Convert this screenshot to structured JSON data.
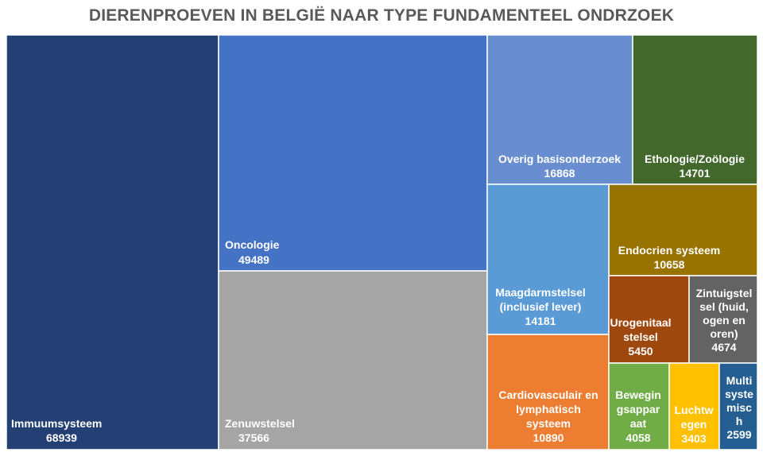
{
  "chart_data": {
    "type": "treemap",
    "title": "DIERENPROEVEN IN BELGIË NAAR TYPE FUNDAMENTEEL ONDRZOEK",
    "items": [
      {
        "label": "Immuumsysteem",
        "value": 68939,
        "color": "#243F74"
      },
      {
        "label": "Oncologie",
        "value": 49489,
        "color": "#4472C4"
      },
      {
        "label": "Zenuwstelsel",
        "value": 37566,
        "color": "#A5A5A5"
      },
      {
        "label": "Overig basisonderzoek",
        "value": 16868,
        "color": "#698ED0"
      },
      {
        "label": "Ethologie/Zoölogie",
        "value": 14701,
        "color": "#43682B"
      },
      {
        "label": "Endocrien systeem",
        "value": 10658,
        "color": "#997300"
      },
      {
        "label": "Maagdarmstelsel (inclusief lever)",
        "value": 14181,
        "color": "#5B9BD5"
      },
      {
        "label": "Cardiovasculair en lymphatisch systeem",
        "value": 10890,
        "color": "#ED7D31"
      },
      {
        "label": "Urogenitaal stelsel",
        "value": 5450,
        "color": "#9E480E"
      },
      {
        "label": "Zintuigstelsel (huid, ogen en oren)",
        "value": 4674,
        "color": "#636363"
      },
      {
        "label": "Bewegingsapparaat",
        "value": 4058,
        "color": "#70AD47"
      },
      {
        "label": "Luchtwegen",
        "value": 3403,
        "color": "#FFC000"
      },
      {
        "label": "Multisystemisch",
        "value": 2599,
        "color": "#255E91"
      }
    ]
  }
}
